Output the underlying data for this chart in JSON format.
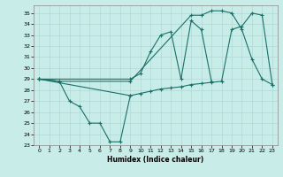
{
  "xlabel": "Humidex (Indice chaleur)",
  "bg_color": "#c8ece8",
  "grid_color": "#b0d8d4",
  "line_color": "#1a7068",
  "xlim": [
    -0.5,
    23.5
  ],
  "ylim": [
    23,
    35.7
  ],
  "yticks": [
    23,
    24,
    25,
    26,
    27,
    28,
    29,
    30,
    31,
    32,
    33,
    34,
    35
  ],
  "xticks": [
    0,
    1,
    2,
    3,
    4,
    5,
    6,
    7,
    8,
    9,
    10,
    11,
    12,
    13,
    14,
    15,
    16,
    17,
    18,
    19,
    20,
    21,
    22,
    23
  ],
  "line1_x": [
    0,
    2,
    3,
    4,
    5,
    6,
    7,
    8,
    9
  ],
  "line1_y": [
    29,
    28.8,
    27.0,
    26.5,
    25.0,
    25.0,
    23.3,
    23.3,
    27.5
  ],
  "line2_x": [
    0,
    9,
    10,
    11,
    12,
    13,
    14,
    15,
    16,
    17
  ],
  "line2_y": [
    29,
    29.0,
    29.5,
    31.5,
    33.0,
    33.3,
    29.0,
    34.3,
    33.5,
    28.8
  ],
  "line3_x": [
    0,
    9,
    10,
    11,
    12,
    13,
    14,
    15,
    16,
    17,
    18,
    19,
    20,
    21,
    22,
    23
  ],
  "line3_y": [
    29,
    27.5,
    27.7,
    27.9,
    28.1,
    28.2,
    28.3,
    28.5,
    28.6,
    28.7,
    28.8,
    33.5,
    33.8,
    35.0,
    34.8,
    28.5
  ],
  "line4_x": [
    0,
    2,
    9,
    15,
    16,
    17,
    18,
    19,
    20,
    21,
    22,
    23
  ],
  "line4_y": [
    29,
    28.8,
    28.8,
    34.8,
    34.8,
    35.2,
    35.2,
    35.0,
    33.5,
    30.8,
    29.0,
    28.5
  ]
}
